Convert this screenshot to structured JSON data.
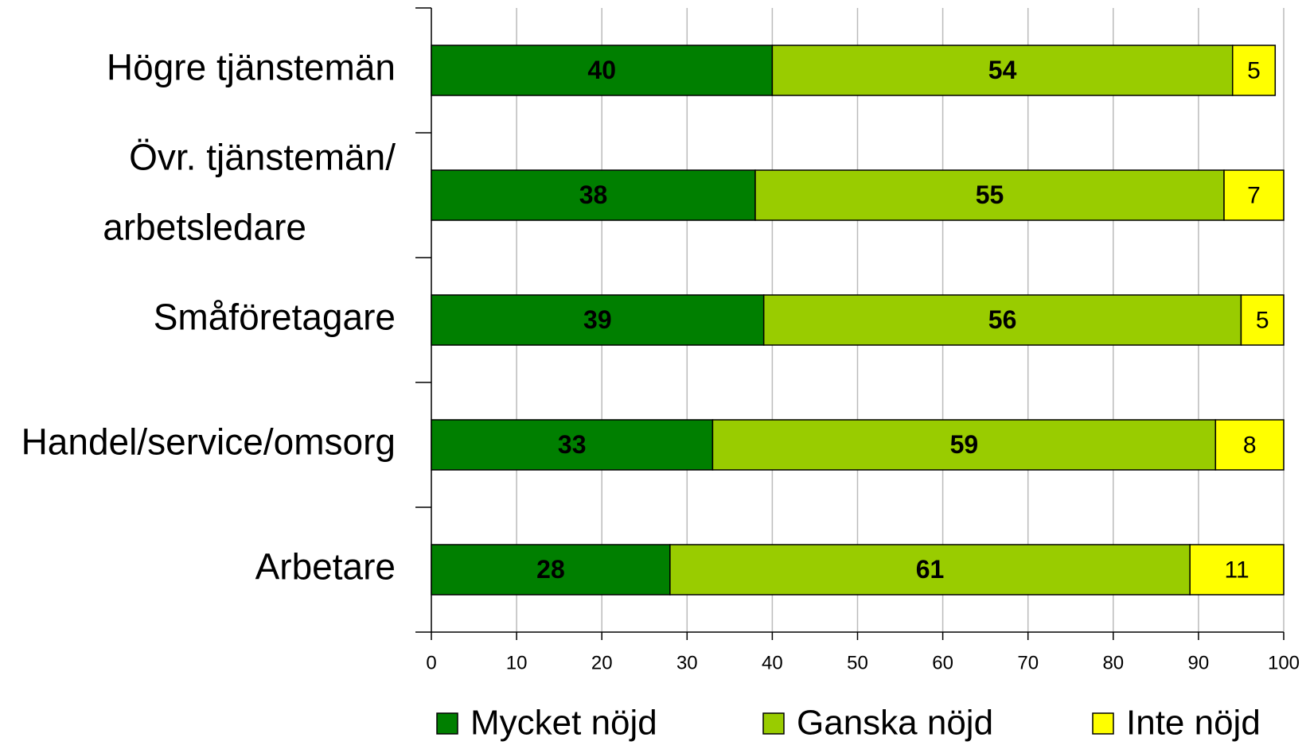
{
  "chart_data": {
    "type": "stacked-barh",
    "categories": [
      "Högre tjänstemän",
      "Övr. tjänstemän/ arbetsledare",
      "Småföretagare",
      "Handel/service/omsorg",
      "Arbetare"
    ],
    "series": [
      {
        "name": "Mycket nöjd",
        "color": "#007f00",
        "values": [
          40,
          38,
          39,
          33,
          28
        ]
      },
      {
        "name": "Ganska nöjd",
        "color": "#99cc00",
        "values": [
          54,
          55,
          56,
          59,
          61
        ]
      },
      {
        "name": "Inte nöjd",
        "color": "#ffff00",
        "values": [
          5,
          7,
          5,
          8,
          11
        ]
      }
    ],
    "xlim": [
      0,
      100
    ],
    "xticks": [
      0,
      10,
      20,
      30,
      40,
      50,
      60,
      70,
      80,
      90,
      100
    ],
    "grid": true,
    "legend": "bottom"
  }
}
